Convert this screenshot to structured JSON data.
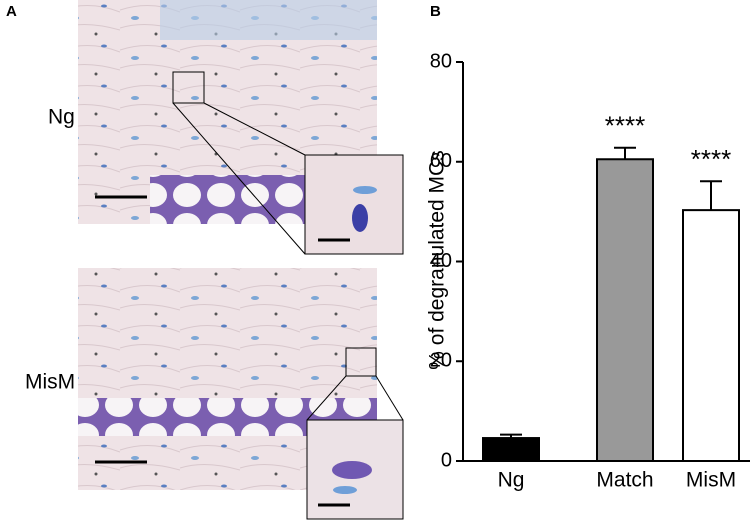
{
  "panel_a": {
    "label": "A",
    "rows": [
      "Ng",
      "MisM"
    ]
  },
  "chart_data": {
    "type": "bar",
    "panel_label": "B",
    "ylabel": "% of degranulated MCs",
    "categories": [
      "Ng",
      "Match",
      "MisM"
    ],
    "values": [
      4.6,
      60.5,
      50.3
    ],
    "errors": [
      0.7,
      2.3,
      5.8
    ],
    "colors": [
      "#000000",
      "#999999",
      "#ffffff"
    ],
    "annotations": [
      null,
      "****",
      "****"
    ],
    "ylim": [
      0,
      80
    ],
    "yticks": [
      0,
      20,
      40,
      60,
      80
    ],
    "grid": false
  }
}
